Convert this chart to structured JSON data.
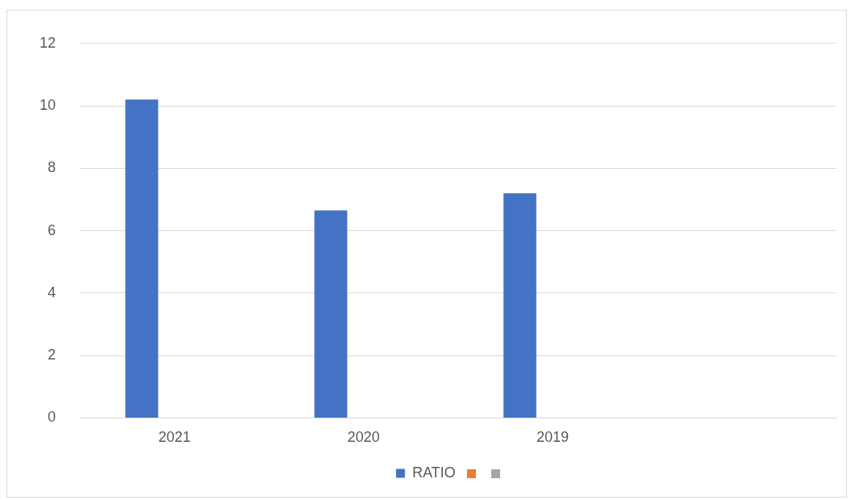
{
  "chart_data": {
    "type": "bar",
    "categories": [
      "2021",
      "2020",
      "2019",
      null
    ],
    "series": [
      {
        "name": "RATIO",
        "color": "#4472c4",
        "values": [
          10.2,
          6.65,
          7.2,
          null
        ]
      }
    ],
    "ylim": [
      0,
      12
    ],
    "yticks": [
      0,
      2,
      4,
      6,
      8,
      10,
      12
    ],
    "grid": "y",
    "legend": "bottom"
  }
}
